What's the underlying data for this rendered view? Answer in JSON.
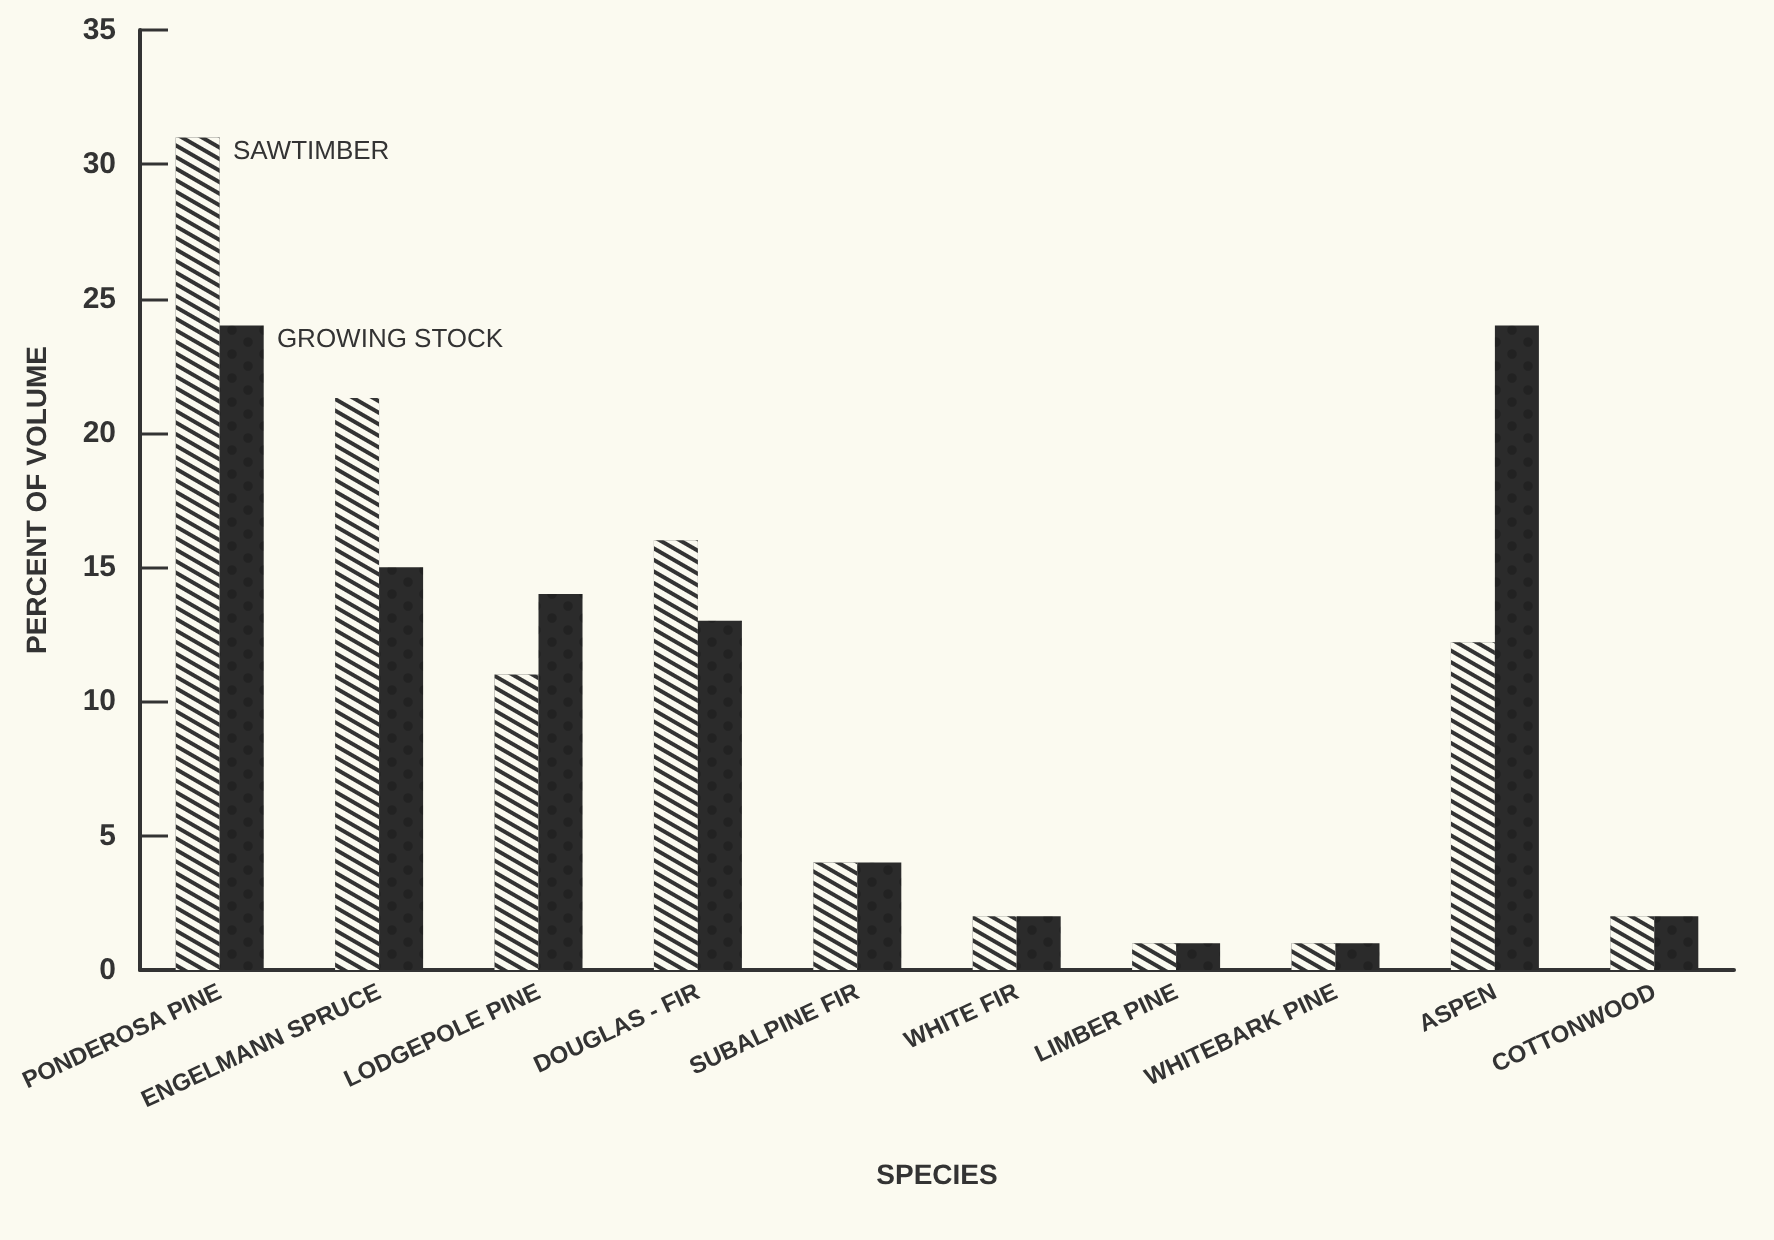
{
  "chart_data": {
    "type": "bar",
    "xlabel": "SPECIES",
    "ylabel": "PERCENT OF VOLUME",
    "categories": [
      "PONDEROSA PINE",
      "ENGELMANN SPRUCE",
      "LODGEPOLE PINE",
      "DOUGLAS - FIR",
      "SUBALPINE FIR",
      "WHITE FIR",
      "LIMBER PINE",
      "WHITEBARK PINE",
      "ASPEN",
      "COTTONWOOD"
    ],
    "series": [
      {
        "name": "SAWTIMBER",
        "color": "#333333",
        "values": [
          31,
          21.3,
          11,
          16,
          4,
          2,
          1,
          1,
          12.2,
          2
        ]
      },
      {
        "name": "GROWING STOCK",
        "color": "#2b2b2b",
        "values": [
          24,
          15,
          14,
          13,
          4,
          2,
          1,
          1,
          24,
          2
        ]
      }
    ],
    "ylim": [
      0,
      35
    ],
    "yticks": [
      0,
      5,
      10,
      15,
      20,
      25,
      30,
      35
    ],
    "grid": false,
    "legend": false
  }
}
